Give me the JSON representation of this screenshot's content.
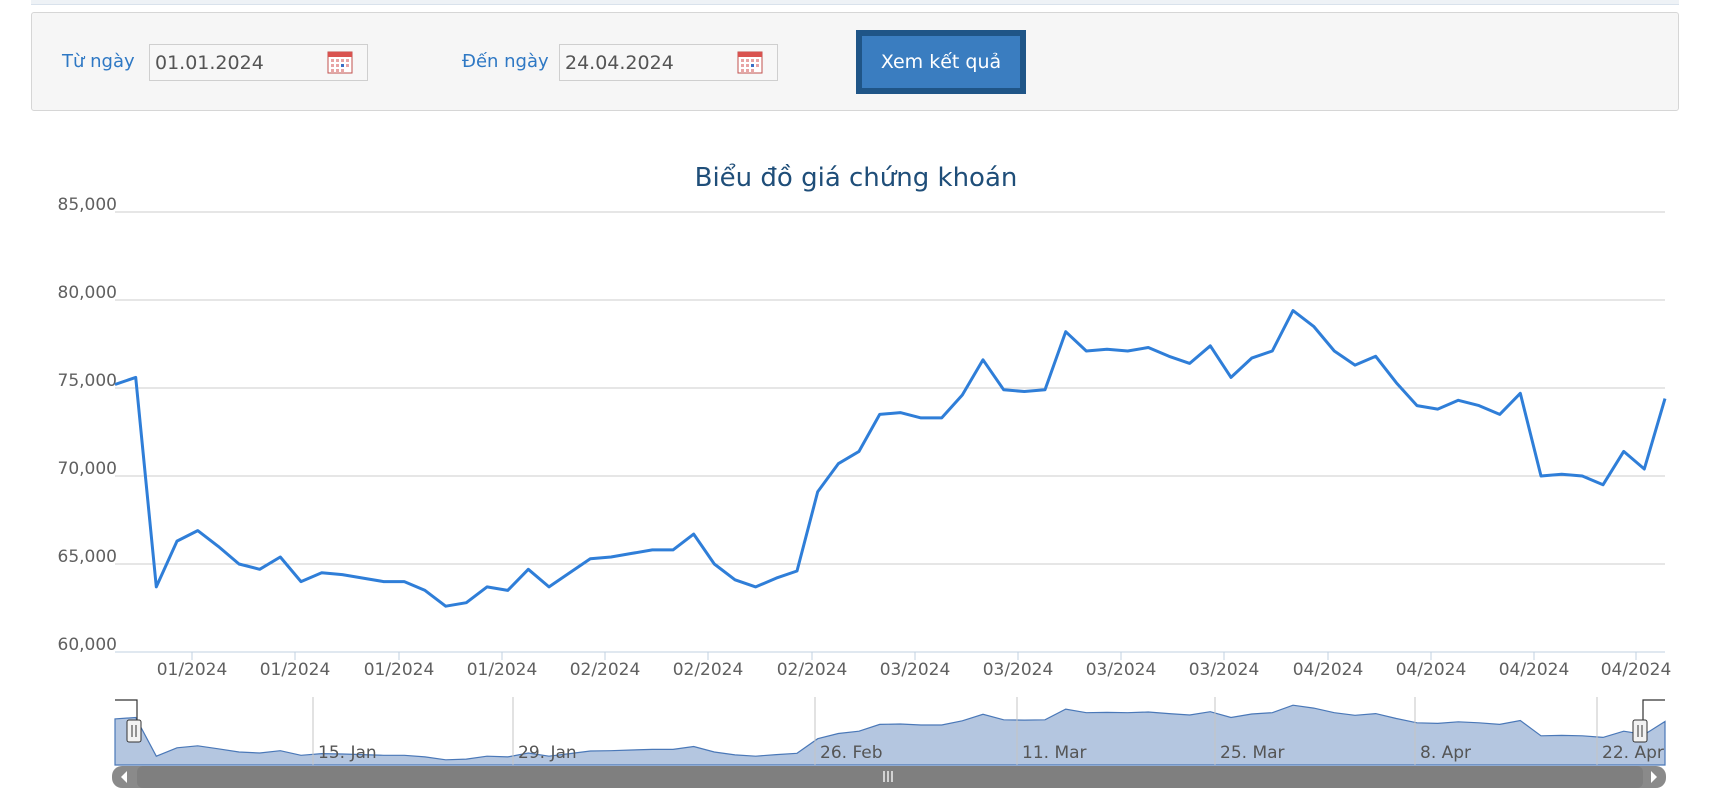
{
  "filter": {
    "from_label": "Từ ngày",
    "from_value": "01.01.2024",
    "to_label": "Đến ngày",
    "to_value": "24.04.2024",
    "submit_label": "Xem kết quả"
  },
  "colors": {
    "line": "#2f7ed8",
    "navigator_fill": "#b4c6e0",
    "label": "#2e78c4",
    "title": "#1f4e79"
  },
  "chart_data": {
    "type": "line",
    "title": "Biểu đồ giá chứng khoán",
    "ylim": [
      60000,
      85000
    ],
    "yticks": [
      60000,
      65000,
      70000,
      75000,
      80000,
      85000
    ],
    "ytick_labels": [
      "60,000",
      "65,000",
      "70,000",
      "75,000",
      "80,000",
      "85,000"
    ],
    "grid": true,
    "xtick_labels": [
      "01/2024",
      "01/2024",
      "01/2024",
      "01/2024",
      "02/2024",
      "02/2024",
      "02/2024",
      "03/2024",
      "03/2024",
      "03/2024",
      "03/2024",
      "04/2024",
      "04/2024",
      "04/2024",
      "04/2024"
    ],
    "series": [
      {
        "values": [
          75200,
          75600,
          63700,
          66300,
          66900,
          66000,
          65000,
          64700,
          65400,
          64000,
          64500,
          64400,
          64200,
          64000,
          64000,
          63500,
          62600,
          62800,
          63700,
          63500,
          64700,
          63700,
          64500,
          65300,
          65400,
          65600,
          65800,
          65800,
          66700,
          65000,
          64100,
          63700,
          64200,
          64600,
          69100,
          70700,
          71400,
          73500,
          73600,
          73300,
          73300,
          74600,
          76600,
          74900,
          74800,
          74900,
          78200,
          77100,
          77200,
          77100,
          77300,
          76800,
          76400,
          77400,
          75600,
          76700,
          77100,
          79400,
          78500,
          77100,
          76300,
          76800,
          75300,
          74000,
          73800,
          74300,
          74000,
          73500,
          74700,
          70000,
          70100,
          70000,
          69500,
          71400,
          70400,
          74400
        ]
      }
    ],
    "navigator": {
      "labels": [
        "15. Jan",
        "29. Jan",
        "26. Feb",
        "11. Mar",
        "25. Mar",
        "8. Apr",
        "22. Apr"
      ]
    }
  }
}
